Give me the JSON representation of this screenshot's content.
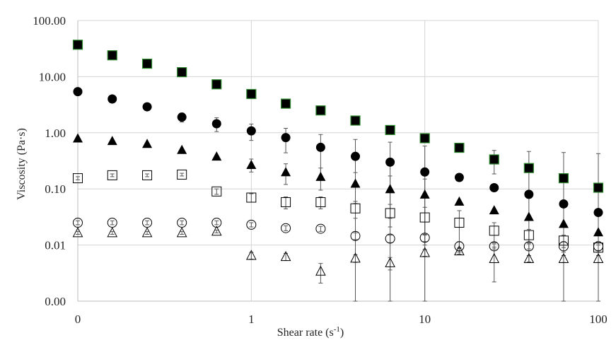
{
  "chart_data": {
    "type": "scatter",
    "title": "",
    "xlabel": "Shear rate (s",
    "xlabel_sup": "-1",
    "xlabel_end": ")",
    "ylabel": "Viscosity (Pa·s)",
    "x_scale": "log",
    "y_scale": "log",
    "xlim": [
      0.1,
      100
    ],
    "ylim": [
      0.001,
      100
    ],
    "grid": true,
    "x_ticks": [
      {
        "value": 0.1,
        "label": "0"
      },
      {
        "value": 1,
        "label": "1"
      },
      {
        "value": 10,
        "label": "10"
      },
      {
        "value": 100,
        "label": "100"
      }
    ],
    "y_ticks": [
      {
        "value": 0.001,
        "label": "0.00"
      },
      {
        "value": 0.01,
        "label": "0.01"
      },
      {
        "value": 0.1,
        "label": "0.10"
      },
      {
        "value": 1,
        "label": "1.00"
      },
      {
        "value": 10,
        "label": "10.00"
      },
      {
        "value": 100,
        "label": "100.00"
      }
    ],
    "x": [
      0.1,
      0.158,
      0.251,
      0.398,
      0.631,
      1,
      1.58,
      2.51,
      3.98,
      6.31,
      10,
      15.8,
      25.1,
      39.8,
      63.1,
      100
    ],
    "series": [
      {
        "marker": "square-filled",
        "color": "#000000",
        "edge_color": "#2e8b2e",
        "values": [
          37,
          24,
          17,
          12,
          7.3,
          4.9,
          3.3,
          2.5,
          1.65,
          1.12,
          0.8,
          0.54,
          0.335,
          0.235,
          0.155,
          0.105
        ],
        "error": [
          0,
          0,
          0,
          0,
          0,
          0,
          0,
          0,
          0,
          0,
          0,
          0,
          0.15,
          0.23,
          0.29,
          0.32
        ]
      },
      {
        "marker": "circle-filled",
        "color": "#000000",
        "values": [
          5.4,
          4,
          2.9,
          1.9,
          1.45,
          1.08,
          0.82,
          0.55,
          0.38,
          0.3,
          0.2,
          0.16,
          0.105,
          0.08,
          0.054,
          0.038
        ],
        "error": [
          0,
          0,
          0,
          0.35,
          0.4,
          0.35,
          0.38,
          0.38,
          0.38,
          0.38,
          0.38,
          0,
          0,
          0,
          0,
          0
        ]
      },
      {
        "marker": "triangle-filled",
        "color": "#000000",
        "values": [
          0.8,
          0.72,
          0.64,
          0.5,
          0.38,
          0.27,
          0.2,
          0.165,
          0.125,
          0.1,
          0.08,
          0.06,
          0.042,
          0.032,
          0.024,
          0.017
        ],
        "error": [
          0,
          0,
          0,
          0,
          0,
          0.07,
          0.08,
          0.07,
          0.07,
          0.07,
          0.07,
          0,
          0,
          0,
          0,
          0
        ]
      },
      {
        "marker": "square-open",
        "color": "#000000",
        "values": [
          0.155,
          0.175,
          0.175,
          0.18,
          0.09,
          0.07,
          0.058,
          0.058,
          0.045,
          0.037,
          0.031,
          0.025,
          0.018,
          0.015,
          0.012,
          0.009
        ],
        "error": [
          0.01,
          0.01,
          0.01,
          0.01,
          0.01,
          0.012,
          0.014,
          0.014,
          0.015,
          0.016,
          0.016,
          0.016,
          0.007,
          0.004,
          0.003,
          0.001
        ]
      },
      {
        "marker": "circle-open",
        "color": "#000000",
        "values": [
          0.025,
          0.025,
          0.025,
          0.025,
          0.025,
          0.023,
          0.02,
          0.0195,
          0.0145,
          0.013,
          0.0135,
          0.0095,
          0.0095,
          0.0095,
          0.0095,
          0.0095
        ],
        "error": [
          0.002,
          0.002,
          0.002,
          0.002,
          0.002,
          0.002,
          0.002,
          0.002,
          0.002,
          0.002,
          0.002,
          0.002,
          0.001,
          0.001,
          0.002,
          0.002
        ]
      },
      {
        "marker": "triangle-open",
        "color": "#000000",
        "values": [
          0.0165,
          0.0165,
          0.0165,
          0.0165,
          0.0175,
          0.0065,
          0.0062,
          0.0034,
          0.0058,
          0.0048,
          0.0073,
          0.0078,
          0.0057,
          0.0057,
          0.0057,
          0.0057
        ],
        "error": [
          0.001,
          0.001,
          0.001,
          0.001,
          0.001,
          0.0009,
          0.0009,
          0.0013,
          0.0009,
          0.0012,
          0.001,
          0.0009,
          0.0035,
          0.0008,
          0.0008,
          0.0008
        ]
      }
    ]
  }
}
